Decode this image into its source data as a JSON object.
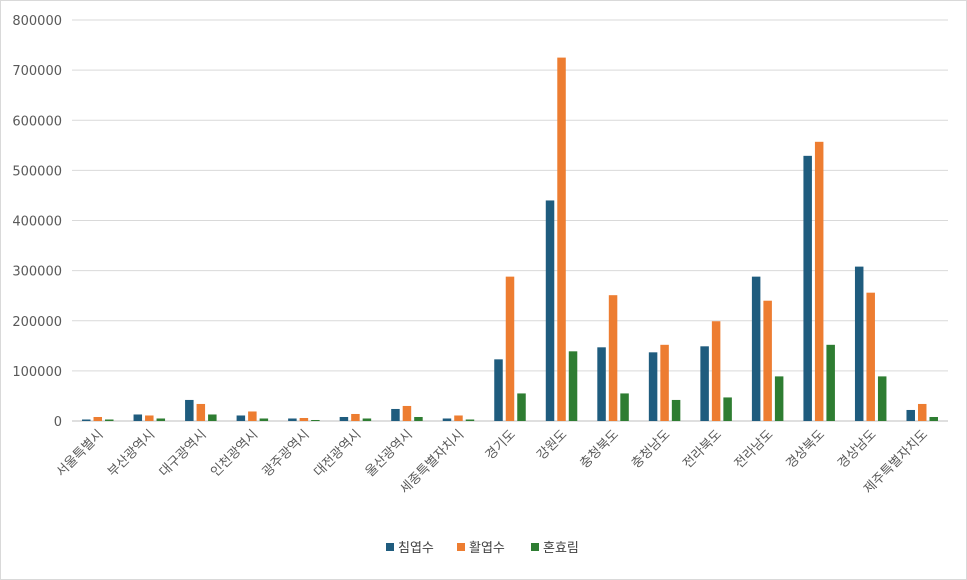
{
  "chart_data": {
    "type": "bar",
    "categories": [
      "서울특별시",
      "부산광역시",
      "대구광역시",
      "인천광역시",
      "광주광역시",
      "대전광역시",
      "울산광역시",
      "세종특별자치시",
      "경기도",
      "강원도",
      "충청북도",
      "충청남도",
      "전라북도",
      "전라남도",
      "경상북도",
      "경상남도",
      "제주특별자치도"
    ],
    "series": [
      {
        "name": "침엽수",
        "color": "#1f5c7e",
        "values": [
          3000,
          13000,
          42000,
          11000,
          5000,
          8000,
          24000,
          5000,
          123000,
          440000,
          147000,
          137000,
          149000,
          288000,
          529000,
          308000,
          22000
        ]
      },
      {
        "name": "활엽수",
        "color": "#ed7d31",
        "values": [
          8000,
          11000,
          34000,
          19000,
          6000,
          14000,
          30000,
          11000,
          288000,
          725000,
          251000,
          152000,
          199000,
          240000,
          557000,
          256000,
          34000
        ]
      },
      {
        "name": "혼효림",
        "color": "#2e7d32",
        "values": [
          3000,
          5000,
          13000,
          5000,
          2000,
          5000,
          8000,
          3000,
          55000,
          139000,
          55000,
          42000,
          47000,
          89000,
          152000,
          89000,
          8000
        ]
      }
    ],
    "ylim": [
      0,
      800000
    ],
    "yticks": [
      "0",
      "100000",
      "200000",
      "300000",
      "400000",
      "500000",
      "600000",
      "700000",
      "800000"
    ],
    "grid": true,
    "legend_position": "bottom"
  }
}
